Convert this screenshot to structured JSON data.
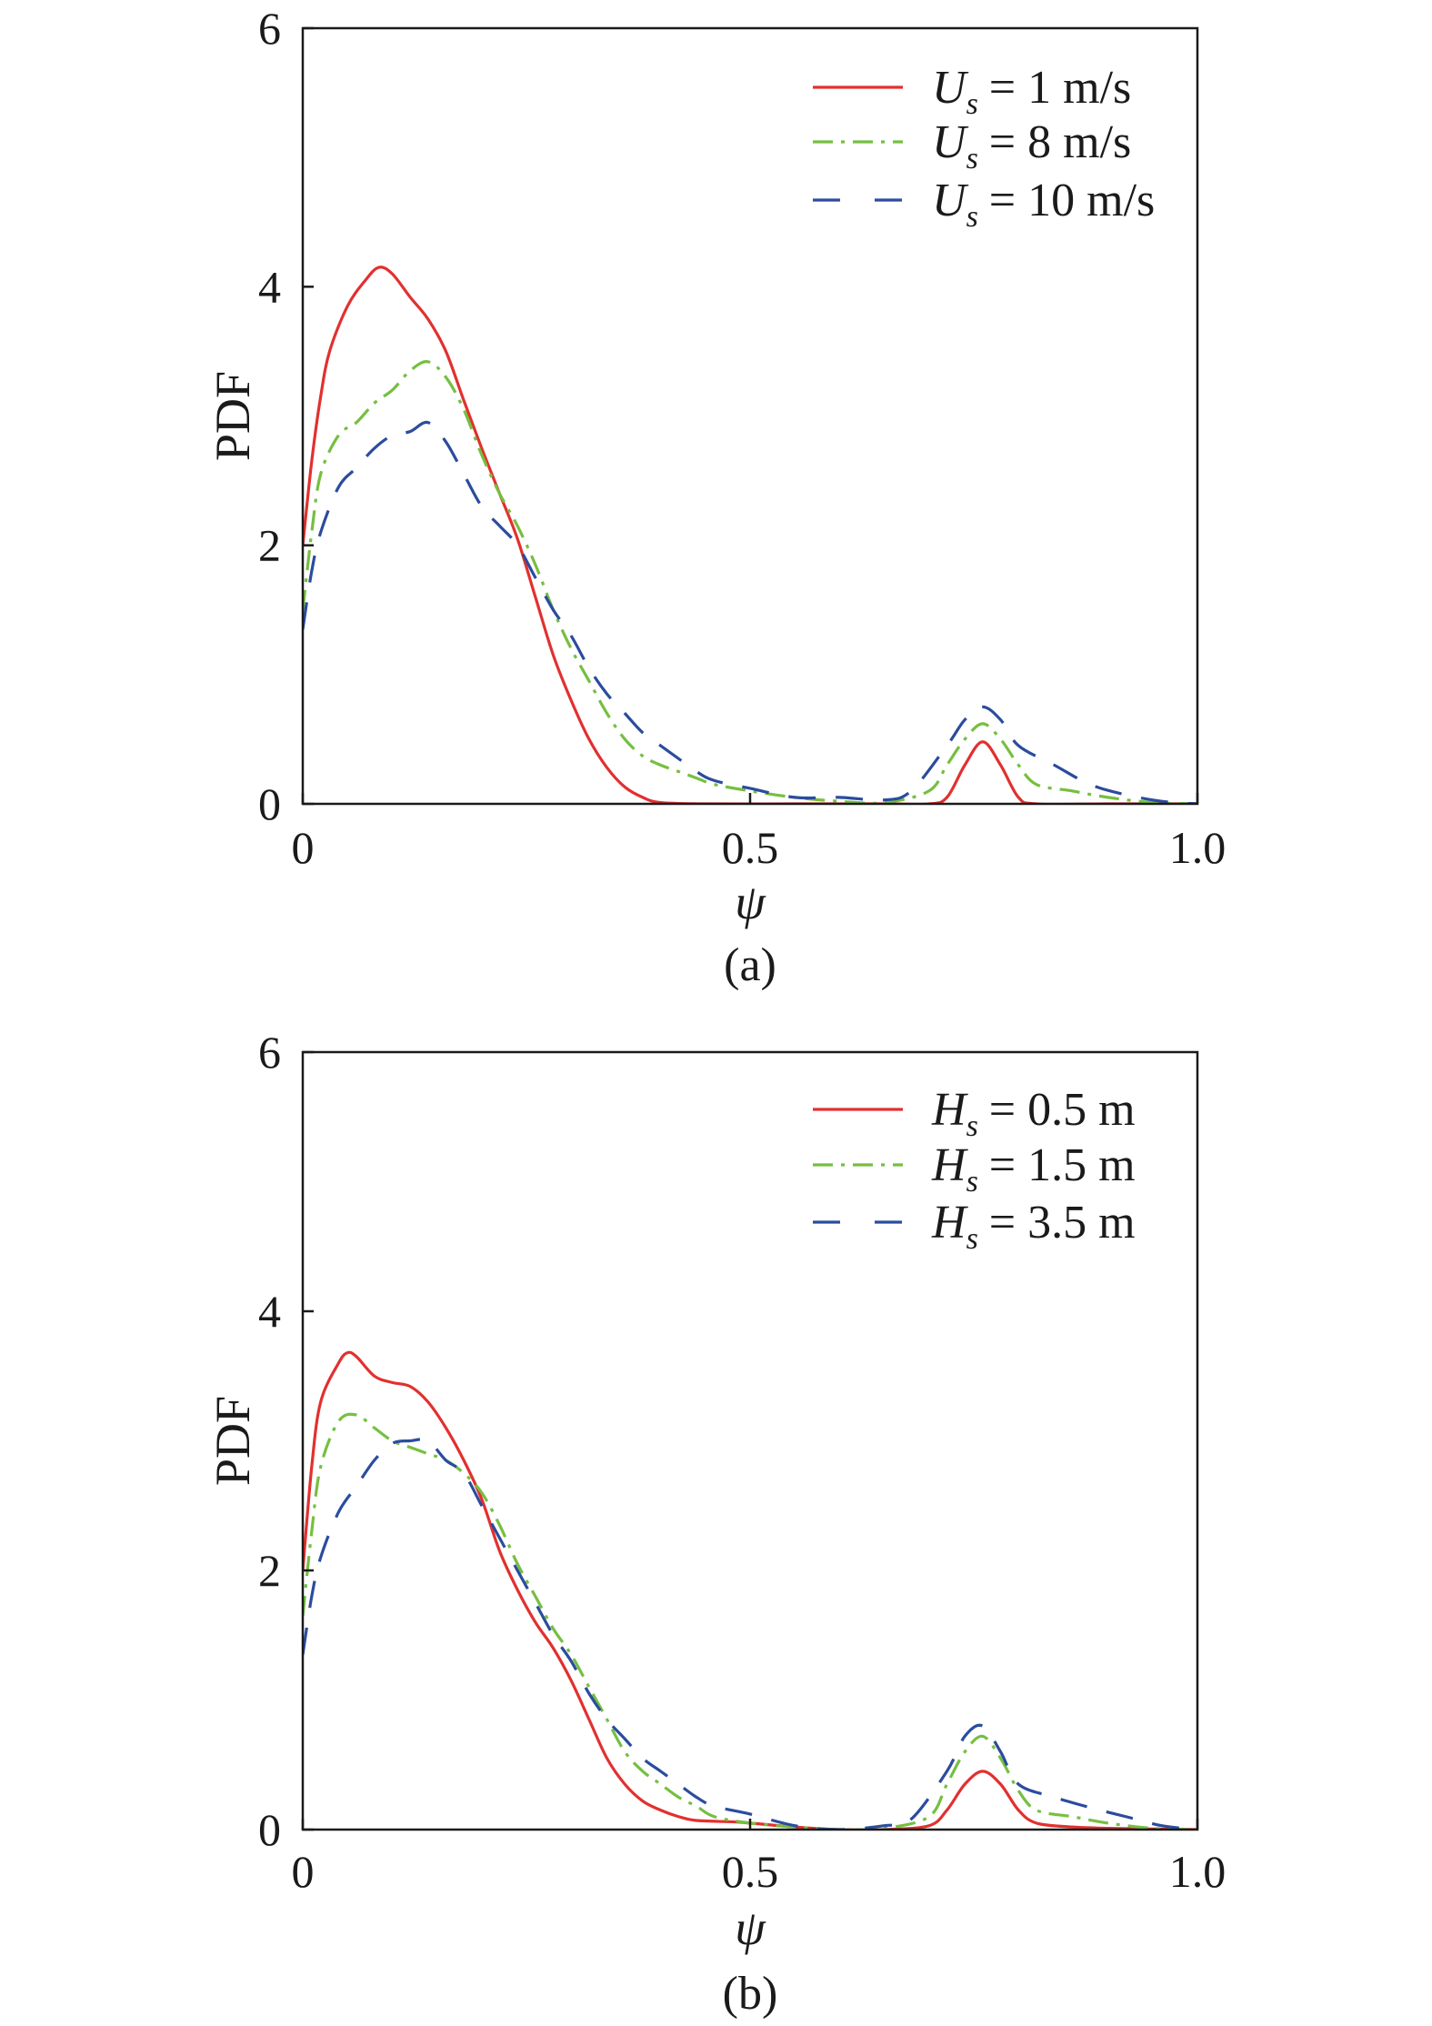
{
  "chart_data": [
    {
      "type": "line",
      "caption": "(a)",
      "xlabel": "ψ",
      "ylabel": "PDF",
      "xlim": [
        0,
        1
      ],
      "ylim": [
        0,
        6
      ],
      "grid": false,
      "legend": "top-right",
      "xticks": [
        {
          "value": 0,
          "label": "0"
        },
        {
          "value": 0.5,
          "label": "0.5"
        },
        {
          "value": 1.0,
          "label": "1.0"
        }
      ],
      "yticks": [
        {
          "value": 0,
          "label": "0"
        },
        {
          "value": 2,
          "label": "2"
        },
        {
          "value": 4,
          "label": "4"
        },
        {
          "value": 6,
          "label": "6"
        }
      ],
      "series": [
        {
          "name": {
            "var": "U",
            "sub": "s",
            "rest": "= 1 m/s"
          },
          "color": "#e2302f",
          "style": "solid",
          "points": [
            [
              0,
              2.0
            ],
            [
              0.01,
              2.65
            ],
            [
              0.02,
              3.15
            ],
            [
              0.03,
              3.5
            ],
            [
              0.05,
              3.85
            ],
            [
              0.07,
              4.05
            ],
            [
              0.085,
              4.15
            ],
            [
              0.1,
              4.1
            ],
            [
              0.12,
              3.92
            ],
            [
              0.14,
              3.75
            ],
            [
              0.16,
              3.5
            ],
            [
              0.18,
              3.12
            ],
            [
              0.2,
              2.75
            ],
            [
              0.22,
              2.4
            ],
            [
              0.24,
              2.05
            ],
            [
              0.26,
              1.6
            ],
            [
              0.28,
              1.15
            ],
            [
              0.3,
              0.8
            ],
            [
              0.32,
              0.5
            ],
            [
              0.34,
              0.28
            ],
            [
              0.36,
              0.13
            ],
            [
              0.38,
              0.05
            ],
            [
              0.4,
              0.01
            ],
            [
              0.45,
              0
            ],
            [
              0.55,
              0
            ],
            [
              0.65,
              0
            ],
            [
              0.7,
              0
            ],
            [
              0.72,
              0.05
            ],
            [
              0.74,
              0.3
            ],
            [
              0.76,
              0.48
            ],
            [
              0.78,
              0.3
            ],
            [
              0.8,
              0.05
            ],
            [
              0.82,
              0
            ],
            [
              0.9,
              0
            ],
            [
              1.0,
              0
            ]
          ]
        },
        {
          "name": {
            "var": "U",
            "sub": "s",
            "rest": "= 8 m/s"
          },
          "color": "#76bf40",
          "style": "dash-dot",
          "points": [
            [
              0,
              1.5
            ],
            [
              0.01,
              2.1
            ],
            [
              0.02,
              2.55
            ],
            [
              0.04,
              2.85
            ],
            [
              0.06,
              2.95
            ],
            [
              0.08,
              3.1
            ],
            [
              0.1,
              3.2
            ],
            [
              0.12,
              3.35
            ],
            [
              0.14,
              3.42
            ],
            [
              0.16,
              3.3
            ],
            [
              0.18,
              3.05
            ],
            [
              0.2,
              2.7
            ],
            [
              0.22,
              2.4
            ],
            [
              0.24,
              2.15
            ],
            [
              0.26,
              1.85
            ],
            [
              0.28,
              1.5
            ],
            [
              0.3,
              1.2
            ],
            [
              0.32,
              0.95
            ],
            [
              0.34,
              0.7
            ],
            [
              0.36,
              0.5
            ],
            [
              0.38,
              0.37
            ],
            [
              0.4,
              0.3
            ],
            [
              0.42,
              0.25
            ],
            [
              0.44,
              0.2
            ],
            [
              0.46,
              0.15
            ],
            [
              0.5,
              0.1
            ],
            [
              0.55,
              0.05
            ],
            [
              0.6,
              0.02
            ],
            [
              0.65,
              0.01
            ],
            [
              0.7,
              0.1
            ],
            [
              0.72,
              0.3
            ],
            [
              0.74,
              0.5
            ],
            [
              0.76,
              0.62
            ],
            [
              0.78,
              0.5
            ],
            [
              0.8,
              0.3
            ],
            [
              0.82,
              0.15
            ],
            [
              0.86,
              0.1
            ],
            [
              0.9,
              0.05
            ],
            [
              0.95,
              0.01
            ],
            [
              1.0,
              0
            ]
          ]
        },
        {
          "name": {
            "var": "U",
            "sub": "s",
            "rest": "= 10 m/s"
          },
          "color": "#2b4c9e",
          "style": "dashed",
          "points": [
            [
              0,
              1.35
            ],
            [
              0.01,
              1.8
            ],
            [
              0.02,
              2.1
            ],
            [
              0.04,
              2.45
            ],
            [
              0.06,
              2.6
            ],
            [
              0.08,
              2.75
            ],
            [
              0.1,
              2.85
            ],
            [
              0.12,
              2.88
            ],
            [
              0.14,
              2.95
            ],
            [
              0.16,
              2.8
            ],
            [
              0.18,
              2.55
            ],
            [
              0.2,
              2.3
            ],
            [
              0.22,
              2.15
            ],
            [
              0.24,
              2.0
            ],
            [
              0.26,
              1.75
            ],
            [
              0.28,
              1.5
            ],
            [
              0.3,
              1.3
            ],
            [
              0.32,
              1.05
            ],
            [
              0.34,
              0.85
            ],
            [
              0.36,
              0.7
            ],
            [
              0.38,
              0.55
            ],
            [
              0.4,
              0.45
            ],
            [
              0.42,
              0.35
            ],
            [
              0.44,
              0.25
            ],
            [
              0.46,
              0.18
            ],
            [
              0.5,
              0.12
            ],
            [
              0.55,
              0.05
            ],
            [
              0.6,
              0.05
            ],
            [
              0.65,
              0.03
            ],
            [
              0.68,
              0.1
            ],
            [
              0.72,
              0.45
            ],
            [
              0.74,
              0.65
            ],
            [
              0.76,
              0.75
            ],
            [
              0.78,
              0.65
            ],
            [
              0.8,
              0.45
            ],
            [
              0.84,
              0.3
            ],
            [
              0.88,
              0.15
            ],
            [
              0.92,
              0.07
            ],
            [
              0.96,
              0.02
            ],
            [
              1.0,
              0
            ]
          ]
        }
      ]
    },
    {
      "type": "line",
      "caption": "(b)",
      "xlabel": "ψ",
      "ylabel": "PDF",
      "xlim": [
        0,
        1
      ],
      "ylim": [
        0,
        6
      ],
      "grid": false,
      "legend": "top-right",
      "xticks": [
        {
          "value": 0,
          "label": "0"
        },
        {
          "value": 0.5,
          "label": "0.5"
        },
        {
          "value": 1.0,
          "label": "1.0"
        }
      ],
      "yticks": [
        {
          "value": 0,
          "label": "0"
        },
        {
          "value": 2,
          "label": "2"
        },
        {
          "value": 4,
          "label": "4"
        },
        {
          "value": 6,
          "label": "6"
        }
      ],
      "series": [
        {
          "name": {
            "var": "H",
            "sub": "s",
            "rest": "= 0.5 m"
          },
          "color": "#e2302f",
          "style": "solid",
          "points": [
            [
              0,
              2.0
            ],
            [
              0.01,
              2.8
            ],
            [
              0.02,
              3.3
            ],
            [
              0.04,
              3.6
            ],
            [
              0.05,
              3.68
            ],
            [
              0.06,
              3.65
            ],
            [
              0.08,
              3.5
            ],
            [
              0.1,
              3.45
            ],
            [
              0.12,
              3.42
            ],
            [
              0.14,
              3.3
            ],
            [
              0.16,
              3.1
            ],
            [
              0.18,
              2.85
            ],
            [
              0.2,
              2.55
            ],
            [
              0.22,
              2.15
            ],
            [
              0.24,
              1.85
            ],
            [
              0.26,
              1.6
            ],
            [
              0.28,
              1.4
            ],
            [
              0.3,
              1.15
            ],
            [
              0.32,
              0.85
            ],
            [
              0.34,
              0.55
            ],
            [
              0.36,
              0.35
            ],
            [
              0.38,
              0.22
            ],
            [
              0.4,
              0.15
            ],
            [
              0.42,
              0.1
            ],
            [
              0.44,
              0.07
            ],
            [
              0.48,
              0.06
            ],
            [
              0.5,
              0.05
            ],
            [
              0.55,
              0.02
            ],
            [
              0.6,
              0
            ],
            [
              0.65,
              0
            ],
            [
              0.7,
              0.03
            ],
            [
              0.72,
              0.15
            ],
            [
              0.74,
              0.35
            ],
            [
              0.76,
              0.45
            ],
            [
              0.78,
              0.35
            ],
            [
              0.8,
              0.15
            ],
            [
              0.82,
              0.05
            ],
            [
              0.86,
              0.02
            ],
            [
              0.9,
              0.01
            ],
            [
              1.0,
              0
            ]
          ]
        },
        {
          "name": {
            "var": "H",
            "sub": "s",
            "rest": "= 1.5 m"
          },
          "color": "#76bf40",
          "style": "dash-dot",
          "points": [
            [
              0,
              1.65
            ],
            [
              0.01,
              2.3
            ],
            [
              0.02,
              2.8
            ],
            [
              0.04,
              3.15
            ],
            [
              0.06,
              3.2
            ],
            [
              0.08,
              3.1
            ],
            [
              0.1,
              3.0
            ],
            [
              0.12,
              2.95
            ],
            [
              0.14,
              2.9
            ],
            [
              0.16,
              2.85
            ],
            [
              0.18,
              2.75
            ],
            [
              0.2,
              2.6
            ],
            [
              0.22,
              2.35
            ],
            [
              0.24,
              2.05
            ],
            [
              0.26,
              1.8
            ],
            [
              0.28,
              1.55
            ],
            [
              0.3,
              1.35
            ],
            [
              0.32,
              1.1
            ],
            [
              0.34,
              0.85
            ],
            [
              0.36,
              0.6
            ],
            [
              0.38,
              0.45
            ],
            [
              0.4,
              0.35
            ],
            [
              0.42,
              0.25
            ],
            [
              0.44,
              0.18
            ],
            [
              0.46,
              0.1
            ],
            [
              0.5,
              0.05
            ],
            [
              0.55,
              0.02
            ],
            [
              0.6,
              0
            ],
            [
              0.65,
              0.01
            ],
            [
              0.7,
              0.1
            ],
            [
              0.72,
              0.35
            ],
            [
              0.74,
              0.6
            ],
            [
              0.76,
              0.72
            ],
            [
              0.78,
              0.55
            ],
            [
              0.8,
              0.3
            ],
            [
              0.82,
              0.15
            ],
            [
              0.86,
              0.1
            ],
            [
              0.9,
              0.05
            ],
            [
              0.95,
              0.01
            ],
            [
              1.0,
              0
            ]
          ]
        },
        {
          "name": {
            "var": "H",
            "sub": "s",
            "rest": "= 3.5 m"
          },
          "color": "#2b4c9e",
          "style": "dashed",
          "points": [
            [
              0,
              1.35
            ],
            [
              0.01,
              1.8
            ],
            [
              0.02,
              2.1
            ],
            [
              0.04,
              2.45
            ],
            [
              0.06,
              2.65
            ],
            [
              0.08,
              2.85
            ],
            [
              0.1,
              2.98
            ],
            [
              0.12,
              3.0
            ],
            [
              0.14,
              3.0
            ],
            [
              0.16,
              2.85
            ],
            [
              0.18,
              2.75
            ],
            [
              0.2,
              2.5
            ],
            [
              0.22,
              2.25
            ],
            [
              0.24,
              2.0
            ],
            [
              0.26,
              1.75
            ],
            [
              0.28,
              1.5
            ],
            [
              0.3,
              1.3
            ],
            [
              0.32,
              1.05
            ],
            [
              0.34,
              0.85
            ],
            [
              0.36,
              0.7
            ],
            [
              0.38,
              0.55
            ],
            [
              0.4,
              0.45
            ],
            [
              0.42,
              0.35
            ],
            [
              0.44,
              0.25
            ],
            [
              0.46,
              0.18
            ],
            [
              0.5,
              0.12
            ],
            [
              0.55,
              0.03
            ],
            [
              0.6,
              0
            ],
            [
              0.65,
              0.03
            ],
            [
              0.68,
              0.08
            ],
            [
              0.72,
              0.45
            ],
            [
              0.74,
              0.72
            ],
            [
              0.76,
              0.8
            ],
            [
              0.78,
              0.6
            ],
            [
              0.8,
              0.35
            ],
            [
              0.84,
              0.25
            ],
            [
              0.88,
              0.17
            ],
            [
              0.92,
              0.1
            ],
            [
              0.96,
              0.03
            ],
            [
              1.0,
              0
            ]
          ]
        }
      ]
    }
  ]
}
